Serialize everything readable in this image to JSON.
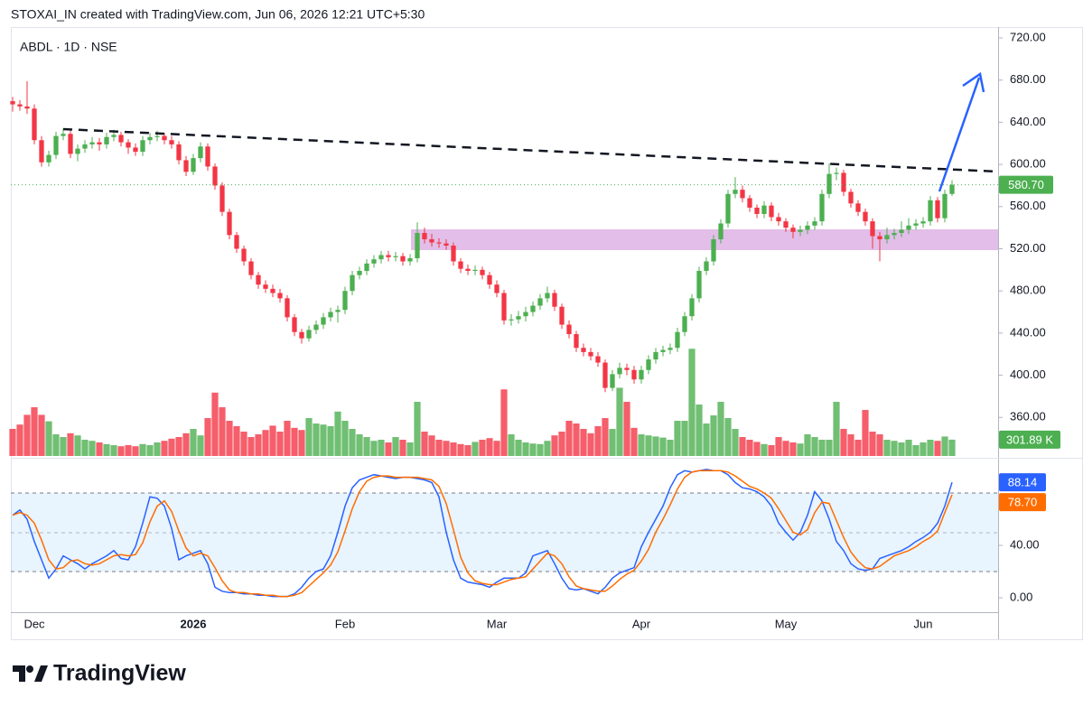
{
  "header": "STOXAI_IN created with TradingView.com, Jun 06, 2026 12:21 UTC+5:30",
  "footer_logo": "TradingView",
  "chart_data": {
    "type": "candlestick",
    "symbol": "ABDL · 1D · NSE",
    "up_color": "#4caf50",
    "down_color": "#f23645",
    "categories": [
      null,
      null,
      null,
      "Dec",
      null,
      null,
      null,
      null,
      null,
      null,
      null,
      null,
      null,
      null,
      null,
      null,
      null,
      null,
      null,
      null,
      null,
      null,
      null,
      null,
      null,
      "2026",
      null,
      null,
      null,
      null,
      null,
      null,
      null,
      null,
      null,
      null,
      null,
      null,
      null,
      null,
      null,
      null,
      null,
      null,
      null,
      null,
      "Feb",
      null,
      null,
      null,
      null,
      null,
      null,
      null,
      null,
      null,
      null,
      null,
      null,
      null,
      null,
      null,
      null,
      null,
      null,
      null,
      null,
      "Mar",
      null,
      null,
      null,
      null,
      null,
      null,
      null,
      null,
      null,
      null,
      null,
      null,
      null,
      null,
      null,
      null,
      null,
      null,
      null,
      "Apr",
      null,
      null,
      null,
      null,
      null,
      null,
      null,
      null,
      null,
      null,
      null,
      null,
      null,
      null,
      null,
      null,
      null,
      null,
      null,
      "May",
      null,
      null,
      null,
      null,
      null,
      null,
      null,
      null,
      null,
      null,
      null,
      null,
      null,
      null,
      null,
      null,
      null,
      null,
      "Jun",
      null,
      null,
      null,
      null
    ],
    "open": [
      660,
      657,
      655,
      653,
      623,
      602,
      609,
      627,
      629,
      610,
      615,
      619,
      621,
      619,
      626,
      628,
      621,
      616,
      612,
      623,
      626,
      627,
      623,
      619,
      604,
      593,
      606,
      617,
      598,
      580,
      555,
      533,
      520,
      508,
      495,
      486,
      482,
      478,
      473,
      455,
      441,
      435,
      443,
      448,
      455,
      460,
      462,
      480,
      495,
      499,
      506,
      510,
      514,
      512,
      513,
      508,
      511,
      535,
      529,
      526,
      525,
      523,
      508,
      501,
      499,
      500,
      495,
      486,
      478,
      452,
      453,
      456,
      460,
      466,
      473,
      478,
      465,
      448,
      439,
      426,
      422,
      418,
      412,
      388,
      401,
      407,
      405,
      396,
      405,
      415,
      422,
      424,
      426,
      441,
      456,
      473,
      499,
      508,
      529,
      544,
      572,
      576,
      568,
      559,
      553,
      561,
      550,
      546,
      540,
      536,
      538,
      542,
      546,
      572,
      591,
      592,
      574,
      563,
      555,
      546,
      532,
      529,
      533,
      535,
      538,
      542,
      544,
      546,
      566,
      549,
      572
    ],
    "high": [
      664,
      661,
      679,
      657,
      627,
      613,
      631,
      634,
      632,
      619,
      623,
      626,
      625,
      630,
      633,
      631,
      624,
      620,
      627,
      630,
      632,
      630,
      627,
      622,
      608,
      610,
      621,
      620,
      601,
      583,
      558,
      536,
      523,
      511,
      498,
      490,
      486,
      482,
      476,
      458,
      444,
      447,
      452,
      459,
      464,
      466,
      484,
      499,
      503,
      510,
      514,
      518,
      518,
      517,
      516,
      515,
      545,
      540,
      534,
      530,
      529,
      526,
      511,
      505,
      504,
      503,
      498,
      490,
      481,
      458,
      461,
      465,
      470,
      477,
      484,
      481,
      468,
      452,
      442,
      430,
      426,
      422,
      415,
      405,
      412,
      411,
      409,
      409,
      419,
      426,
      428,
      430,
      445,
      460,
      477,
      503,
      512,
      533,
      548,
      576,
      588,
      580,
      571,
      562,
      565,
      564,
      554,
      549,
      543,
      542,
      546,
      550,
      576,
      601,
      597,
      595,
      577,
      566,
      558,
      549,
      536,
      540,
      539,
      546,
      549,
      548,
      550,
      570,
      569,
      576,
      585
    ],
    "low": [
      650,
      651,
      648,
      619,
      598,
      598,
      605,
      623,
      606,
      603,
      611,
      615,
      613,
      615,
      622,
      617,
      610,
      608,
      608,
      619,
      622,
      619,
      615,
      600,
      589,
      590,
      602,
      594,
      576,
      551,
      529,
      516,
      504,
      491,
      482,
      478,
      474,
      469,
      451,
      437,
      430,
      432,
      439,
      444,
      451,
      450,
      458,
      476,
      491,
      495,
      502,
      506,
      508,
      508,
      504,
      504,
      507,
      525,
      522,
      521,
      519,
      504,
      497,
      495,
      495,
      491,
      482,
      474,
      448,
      447,
      449,
      451,
      456,
      462,
      469,
      461,
      444,
      435,
      422,
      418,
      414,
      408,
      384,
      385,
      397,
      400,
      392,
      392,
      401,
      411,
      418,
      420,
      422,
      437,
      452,
      469,
      495,
      504,
      525,
      540,
      568,
      564,
      555,
      549,
      549,
      546,
      542,
      536,
      530,
      532,
      534,
      538,
      542,
      568,
      585,
      570,
      559,
      551,
      542,
      520,
      508,
      525,
      529,
      531,
      534,
      538,
      540,
      542,
      545,
      545,
      570
    ],
    "close": [
      657,
      655,
      653,
      623,
      602,
      609,
      627,
      629,
      610,
      615,
      619,
      621,
      619,
      626,
      628,
      621,
      616,
      612,
      623,
      626,
      627,
      623,
      619,
      604,
      593,
      606,
      617,
      598,
      580,
      555,
      533,
      520,
      508,
      495,
      486,
      482,
      478,
      473,
      455,
      441,
      435,
      443,
      448,
      455,
      460,
      462,
      480,
      495,
      499,
      506,
      510,
      514,
      512,
      513,
      508,
      511,
      535,
      529,
      526,
      525,
      523,
      508,
      501,
      499,
      500,
      495,
      486,
      478,
      452,
      453,
      456,
      460,
      466,
      473,
      478,
      465,
      448,
      439,
      426,
      422,
      418,
      412,
      388,
      401,
      407,
      405,
      396,
      405,
      415,
      422,
      424,
      426,
      441,
      456,
      473,
      499,
      508,
      529,
      544,
      572,
      576,
      568,
      559,
      553,
      561,
      550,
      546,
      540,
      536,
      538,
      542,
      546,
      572,
      591,
      592,
      574,
      563,
      555,
      546,
      532,
      529,
      533,
      535,
      538,
      542,
      544,
      546,
      566,
      549,
      572,
      580.7
    ],
    "last_label": "580.70",
    "ylim": [
      323.4,
      730.3
    ],
    "yticks": [
      {
        "value": 360,
        "label": "360.00"
      },
      {
        "value": 400,
        "label": "400.00"
      },
      {
        "value": 440,
        "label": "440.00"
      },
      {
        "value": 480,
        "label": "480.00"
      },
      {
        "value": 520,
        "label": "520.00"
      },
      {
        "value": 560,
        "label": "560.00"
      },
      {
        "value": 600,
        "label": "600.00"
      },
      {
        "value": 640,
        "label": "640.00"
      },
      {
        "value": 680,
        "label": "680.00"
      },
      {
        "value": 720,
        "label": "720.00"
      }
    ],
    "volume": {
      "values": [
        500,
        580,
        760,
        900,
        760,
        640,
        400,
        350,
        420,
        380,
        300,
        280,
        250,
        220,
        200,
        180,
        200,
        180,
        220,
        200,
        250,
        280,
        320,
        350,
        420,
        500,
        380,
        700,
        1170,
        900,
        650,
        550,
        450,
        350,
        400,
        480,
        560,
        450,
        650,
        520,
        480,
        700,
        600,
        580,
        550,
        820,
        650,
        500,
        400,
        350,
        280,
        300,
        250,
        350,
        300,
        250,
        1000,
        450,
        380,
        300,
        280,
        250,
        220,
        200,
        260,
        300,
        330,
        280,
        1230,
        400,
        300,
        250,
        230,
        220,
        280,
        380,
        450,
        650,
        600,
        500,
        420,
        550,
        700,
        500,
        1260,
        1000,
        520,
        400,
        380,
        360,
        340,
        300,
        650,
        650,
        1980,
        950,
        600,
        750,
        1000,
        700,
        500,
        350,
        300,
        260,
        220,
        200,
        350,
        280,
        250,
        230,
        400,
        350,
        300,
        300,
        1000,
        500,
        400,
        300,
        850,
        450,
        400,
        300,
        280,
        250,
        300,
        200,
        250,
        300,
        280,
        360,
        301.89
      ],
      "last_label": "301.89 K"
    },
    "stochastic": {
      "ylim": [
        -10.3,
        104.8
      ],
      "yticks": [
        {
          "value": 0,
          "label": "0.00"
        },
        {
          "value": 40,
          "label": "40.00"
        }
      ],
      "series": [
        {
          "color": "#2962ff",
          "last_label": "88.14",
          "values": [
            63,
            67,
            60,
            43,
            29,
            15,
            22,
            32,
            29,
            26,
            22,
            26,
            29,
            32,
            36,
            30,
            29,
            39,
            57,
            77,
            76,
            70,
            53,
            29,
            32,
            34,
            36,
            26,
            8,
            5,
            4,
            4,
            3,
            3,
            2,
            2,
            1,
            1,
            1,
            3,
            8,
            15,
            20,
            22,
            32,
            50,
            70,
            84,
            90,
            92,
            94,
            93,
            92,
            91,
            92,
            92,
            91,
            90,
            88,
            77,
            50,
            29,
            15,
            12,
            11,
            10,
            8,
            12,
            15,
            15,
            15,
            19,
            32,
            34,
            36,
            26,
            15,
            7,
            6,
            7,
            5,
            3,
            8,
            15,
            19,
            21,
            23,
            39,
            50,
            60,
            70,
            84,
            94,
            97,
            96,
            97,
            98,
            97,
            97,
            94,
            88,
            84,
            83,
            81,
            77,
            70,
            57,
            50,
            44,
            50,
            63,
            81,
            74,
            60,
            43,
            36,
            26,
            22,
            21,
            22,
            30,
            32,
            34,
            36,
            39,
            43,
            46,
            50,
            57,
            70,
            88.14
          ]
        },
        {
          "color": "#ff6d00",
          "last_label": "78.70",
          "values": [
            63,
            65,
            63,
            57,
            44,
            29,
            22,
            23,
            28,
            29,
            26,
            25,
            26,
            29,
            32,
            33,
            32,
            33,
            42,
            58,
            70,
            74,
            66,
            51,
            38,
            32,
            34,
            32,
            23,
            13,
            6,
            4,
            4,
            3,
            3,
            2,
            2,
            1,
            1,
            2,
            4,
            9,
            14,
            19,
            25,
            35,
            51,
            68,
            81,
            89,
            92,
            93,
            93,
            92,
            92,
            92,
            92,
            91,
            90,
            85,
            72,
            52,
            31,
            19,
            13,
            11,
            10,
            10,
            12,
            14,
            15,
            16,
            22,
            28,
            34,
            32,
            26,
            16,
            9,
            7,
            6,
            5,
            5,
            9,
            14,
            18,
            21,
            28,
            37,
            50,
            60,
            71,
            83,
            92,
            96,
            97,
            97,
            97,
            97,
            96,
            93,
            89,
            85,
            83,
            80,
            76,
            68,
            59,
            50,
            48,
            52,
            65,
            73,
            72,
            59,
            46,
            35,
            28,
            23,
            22,
            24,
            28,
            32,
            34,
            36,
            39,
            43,
            46,
            51,
            65,
            78.7
          ]
        }
      ]
    }
  }
}
